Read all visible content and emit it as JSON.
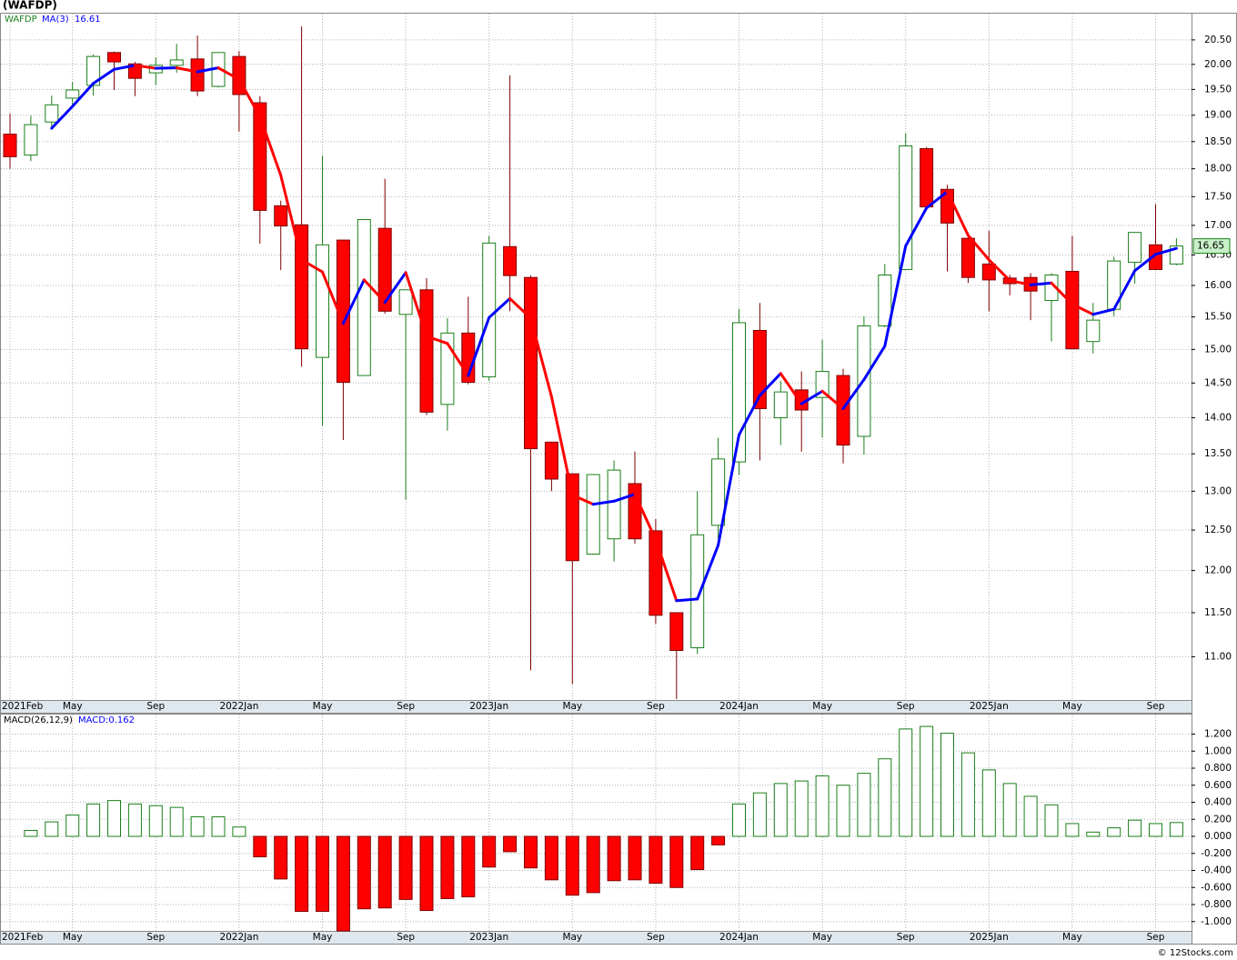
{
  "chart_data": [
    {
      "type": "candlestick",
      "title": "(WAFDP)",
      "categories": [
        "2021Feb",
        null,
        null,
        "May",
        null,
        null,
        null,
        "Sep",
        null,
        null,
        null,
        "2022Jan",
        null,
        null,
        null,
        "May",
        null,
        null,
        null,
        "Sep",
        null,
        null,
        null,
        "2023Jan",
        null,
        null,
        null,
        "May",
        null,
        null,
        null,
        "Sep",
        null,
        null,
        null,
        "2024Jan",
        null,
        null,
        null,
        "May",
        null,
        null,
        null,
        "Sep",
        null,
        null,
        null,
        "2025Jan",
        null,
        null,
        null,
        "May",
        null,
        null,
        null,
        "Sep",
        null
      ],
      "series": [
        {
          "name": "WAFDP",
          "color": "#1a7f1a",
          "down_color": "#ff0000",
          "open": [
            18.64,
            18.25,
            18.87,
            19.33,
            19.58,
            20.24,
            20.01,
            19.83,
            19.98,
            20.11,
            19.56,
            20.16,
            19.24,
            17.34,
            17.01,
            14.88,
            16.75,
            14.61,
            16.95,
            15.54,
            15.93,
            14.19,
            15.25,
            14.59,
            16.64,
            16.13,
            13.66,
            13.23,
            12.2,
            12.39,
            13.1,
            12.49,
            11.5,
            11.1,
            12.56,
            13.39,
            15.29,
            14.0,
            14.4,
            14.29,
            14.61,
            13.74,
            15.36,
            16.26,
            18.37,
            17.63,
            16.78,
            16.35,
            16.12,
            16.13,
            15.76,
            16.23,
            15.12,
            15.62,
            16.38,
            16.67,
            16.35
          ],
          "high": [
            19.03,
            18.99,
            19.38,
            19.65,
            20.2,
            20.26,
            20.05,
            20.14,
            20.42,
            20.59,
            20.24,
            20.27,
            19.37,
            17.43,
            20.78,
            18.24,
            16.75,
            17.1,
            17.82,
            15.93,
            16.12,
            15.48,
            15.82,
            16.82,
            19.78,
            16.16,
            13.66,
            13.23,
            13.22,
            13.41,
            13.53,
            12.64,
            11.5,
            13.0,
            13.72,
            15.62,
            15.72,
            14.53,
            14.67,
            15.15,
            14.71,
            15.51,
            16.35,
            18.66,
            18.4,
            17.71,
            16.88,
            16.91,
            16.17,
            16.2,
            16.2,
            16.82,
            15.72,
            16.47,
            16.88,
            17.37,
            16.78
          ],
          "low": [
            18.0,
            18.14,
            18.73,
            19.2,
            19.38,
            19.49,
            19.37,
            19.59,
            19.83,
            19.37,
            19.54,
            18.69,
            16.69,
            16.25,
            14.74,
            13.89,
            13.69,
            14.61,
            15.55,
            12.89,
            14.04,
            13.82,
            14.48,
            14.53,
            15.59,
            10.85,
            13.0,
            10.7,
            12.19,
            12.11,
            12.33,
            11.37,
            10.54,
            11.03,
            12.39,
            13.22,
            13.41,
            13.62,
            13.53,
            13.72,
            13.37,
            13.49,
            15.34,
            16.26,
            17.29,
            16.23,
            16.04,
            15.59,
            15.84,
            15.45,
            15.12,
            15.01,
            14.94,
            15.51,
            16.03,
            16.25,
            16.33
          ],
          "close": [
            18.22,
            18.82,
            19.2,
            19.49,
            20.16,
            20.05,
            19.72,
            19.98,
            20.09,
            19.47,
            20.24,
            19.4,
            17.26,
            16.99,
            15.01,
            16.67,
            14.51,
            17.1,
            15.59,
            15.93,
            14.08,
            15.25,
            14.51,
            16.7,
            16.16,
            13.57,
            13.16,
            12.12,
            13.22,
            13.28,
            12.39,
            11.47,
            11.07,
            12.44,
            13.43,
            15.41,
            14.13,
            14.37,
            14.11,
            14.67,
            13.62,
            15.36,
            16.17,
            18.42,
            17.32,
            17.04,
            16.13,
            16.09,
            16.03,
            15.91,
            16.17,
            15.01,
            15.45,
            16.4,
            16.88,
            16.26,
            16.65
          ]
        },
        {
          "name": "MA(3)",
          "color": "#0000ff",
          "down_color": "#ff0000",
          "values": [
            null,
            null,
            18.75,
            19.17,
            19.62,
            19.9,
            19.98,
            19.92,
            19.93,
            19.85,
            19.93,
            19.7,
            18.97,
            17.88,
            16.42,
            16.22,
            15.4,
            16.09,
            15.73,
            16.21,
            15.2,
            15.09,
            14.61,
            15.49,
            15.79,
            15.48,
            14.3,
            12.95,
            12.83,
            12.87,
            12.96,
            12.38,
            11.64,
            11.66,
            12.31,
            13.76,
            14.32,
            14.64,
            14.2,
            14.38,
            14.13,
            14.55,
            15.05,
            16.65,
            17.3,
            17.59,
            16.83,
            16.42,
            16.08,
            16.01,
            16.04,
            15.7,
            15.54,
            15.62,
            16.24,
            16.51,
            16.61
          ]
        }
      ],
      "ylim": [
        10.53,
        21.07
      ],
      "log_scale": true,
      "grid": true,
      "yticks": [
        {
          "value": 11,
          "label": "11.00"
        },
        {
          "value": 11.5,
          "label": "11.50"
        },
        {
          "value": 12,
          "label": "12.00"
        },
        {
          "value": 12.5,
          "label": "12.50"
        },
        {
          "value": 13,
          "label": "13.00"
        },
        {
          "value": 13.5,
          "label": "13.50"
        },
        {
          "value": 14,
          "label": "14.00"
        },
        {
          "value": 14.5,
          "label": "14.50"
        },
        {
          "value": 15,
          "label": "15.00"
        },
        {
          "value": 15.5,
          "label": "15.50"
        },
        {
          "value": 16,
          "label": "16.00"
        },
        {
          "value": 16.5,
          "label": "16.50"
        },
        {
          "value": 17,
          "label": "17.00"
        },
        {
          "value": 17.5,
          "label": "17.50"
        },
        {
          "value": 18,
          "label": "18.00"
        },
        {
          "value": 18.5,
          "label": "18.50"
        },
        {
          "value": 19,
          "label": "19.00"
        },
        {
          "value": 19.5,
          "label": "19.50"
        },
        {
          "value": 20,
          "label": "20.00"
        },
        {
          "value": 20.5,
          "label": "20.50"
        }
      ]
    },
    {
      "type": "bar",
      "title": "MACD(26,12,9)",
      "subtitle": "MACD:0.162",
      "categories": [
        "2021Feb",
        null,
        null,
        "May",
        null,
        null,
        null,
        "Sep",
        null,
        null,
        null,
        "2022Jan",
        null,
        null,
        null,
        "May",
        null,
        null,
        null,
        "Sep",
        null,
        null,
        null,
        "2023Jan",
        null,
        null,
        null,
        "May",
        null,
        null,
        null,
        "Sep",
        null,
        null,
        null,
        "2024Jan",
        null,
        null,
        null,
        "May",
        null,
        null,
        null,
        "Sep",
        null,
        null,
        null,
        "2025Jan",
        null,
        null,
        null,
        "May",
        null,
        null,
        null,
        "Sep",
        null
      ],
      "values": [
        null,
        0.07,
        0.17,
        0.25,
        0.38,
        0.42,
        0.38,
        0.36,
        0.34,
        0.23,
        0.23,
        0.11,
        -0.24,
        -0.5,
        -0.88,
        -0.88,
        -1.11,
        -0.85,
        -0.84,
        -0.74,
        -0.87,
        -0.73,
        -0.71,
        -0.36,
        -0.18,
        -0.37,
        -0.51,
        -0.69,
        -0.66,
        -0.52,
        -0.51,
        -0.55,
        -0.6,
        -0.39,
        -0.1,
        0.38,
        0.51,
        0.62,
        0.65,
        0.71,
        0.6,
        0.74,
        0.91,
        1.26,
        1.29,
        1.21,
        0.98,
        0.78,
        0.62,
        0.47,
        0.37,
        0.15,
        0.05,
        0.1,
        0.19,
        0.15,
        0.162
      ],
      "color": "#1a7f1a",
      "down_color": "#ff0000",
      "ylim": [
        -1.12,
        1.44
      ],
      "grid": true,
      "yticks": [
        {
          "value": -1,
          "label": "-1.000"
        },
        {
          "value": -0.8,
          "label": "-0.800"
        },
        {
          "value": -0.6,
          "label": "-0.600"
        },
        {
          "value": -0.4,
          "label": "-0.400"
        },
        {
          "value": -0.2,
          "label": "-0.200"
        },
        {
          "value": 0,
          "label": "0.000"
        },
        {
          "value": 0.2,
          "label": "0.200"
        },
        {
          "value": 0.4,
          "label": "0.400"
        },
        {
          "value": 0.6,
          "label": "0.600"
        },
        {
          "value": 0.8,
          "label": "0.800"
        },
        {
          "value": 1,
          "label": "1.000"
        },
        {
          "value": 1.2,
          "label": "1.200"
        }
      ]
    }
  ],
  "footer": "© 12Stocks.com"
}
